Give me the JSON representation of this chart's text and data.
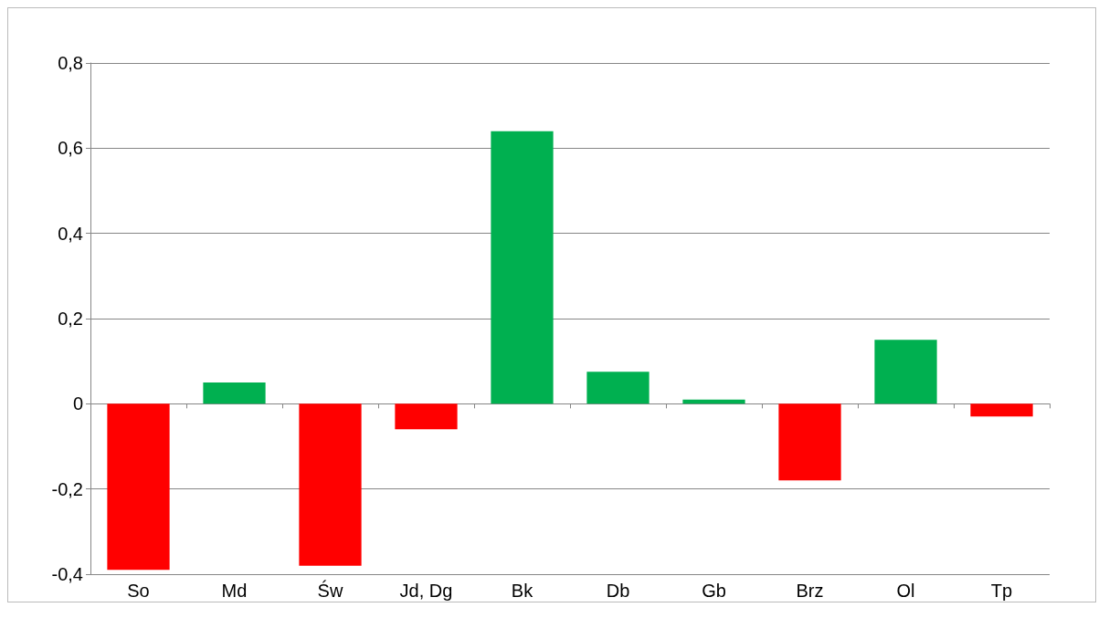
{
  "chart_data": {
    "type": "bar",
    "categories": [
      "So",
      "Md",
      "Św",
      "Jd, Dg",
      "Bk",
      "Db",
      "Gb",
      "Brz",
      "Ol",
      "Tp"
    ],
    "values": [
      -0.39,
      0.05,
      -0.38,
      -0.06,
      0.64,
      0.075,
      0.01,
      -0.18,
      0.15,
      -0.03
    ],
    "colors": [
      "#ff0000",
      "#00b050",
      "#ff0000",
      "#ff0000",
      "#00b050",
      "#00b050",
      "#00b050",
      "#ff0000",
      "#00b050",
      "#ff0000"
    ],
    "ylim": [
      -0.4,
      0.8
    ],
    "yticks": [
      {
        "value": -0.4,
        "label": "-0,4"
      },
      {
        "value": -0.2,
        "label": "-0,2"
      },
      {
        "value": 0,
        "label": "0"
      },
      {
        "value": 0.2,
        "label": "0,2"
      },
      {
        "value": 0.4,
        "label": "0,4"
      },
      {
        "value": 0.6,
        "label": "0,6"
      },
      {
        "value": 0.8,
        "label": "0,8"
      }
    ],
    "grid": "y"
  }
}
